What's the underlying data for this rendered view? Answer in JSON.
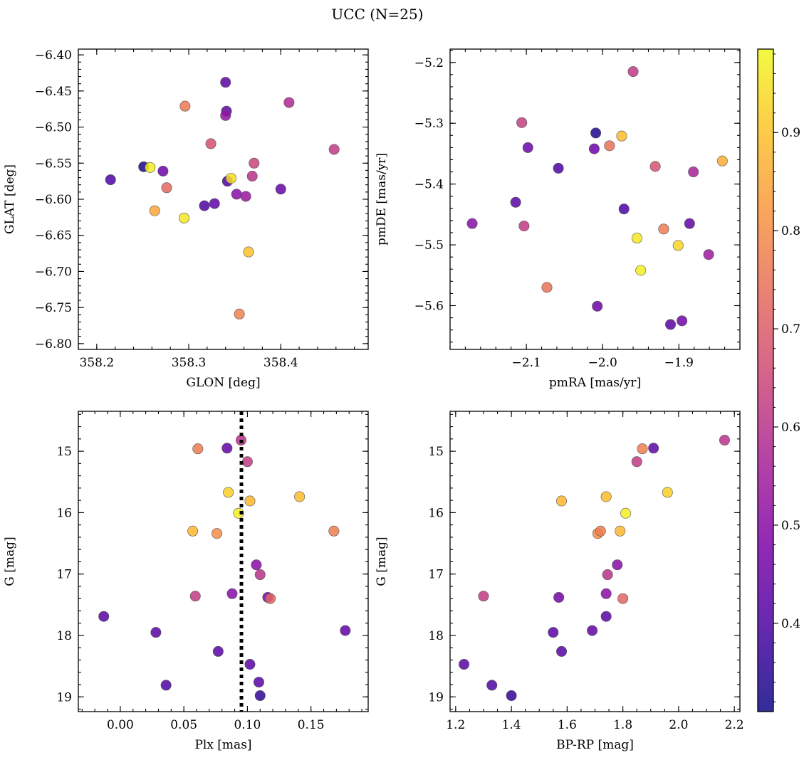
{
  "figure": {
    "title": "UCC (N=25)"
  },
  "colorbar": {
    "range": [
      0.31,
      0.985
    ],
    "ticks": [
      0.4,
      0.5,
      0.6,
      0.7,
      0.8,
      0.9
    ],
    "tick_labels": [
      "0.4",
      "0.5",
      "0.6",
      "0.7",
      "0.8",
      "0.9"
    ]
  },
  "chart_data": [
    {
      "id": "glon-glat",
      "type": "scatter",
      "xlabel": "GLON [deg]",
      "ylabel": "GLAT [deg]",
      "xlim": [
        358.18,
        358.495
      ],
      "ylim": [
        -6.808,
        -6.392
      ],
      "xticks": [
        358.2,
        358.3,
        358.4
      ],
      "xtick_labels": [
        "358.2",
        "358.3",
        "358.4"
      ],
      "yticks": [
        -6.8,
        -6.75,
        -6.7,
        -6.65,
        -6.6,
        -6.55,
        -6.5,
        -6.45,
        -6.4
      ],
      "ytick_labels": [
        "−6.80",
        "−6.75",
        "−6.70",
        "−6.65",
        "−6.60",
        "−6.55",
        "−6.50",
        "−6.45",
        "−6.40"
      ],
      "x_minor_step": 0.02,
      "y_minor_step": 0.01,
      "points": [
        {
          "x": 358.215,
          "y": -6.573,
          "c": 0.4
        },
        {
          "x": 358.251,
          "y": -6.555,
          "c": 0.33
        },
        {
          "x": 358.258,
          "y": -6.556,
          "c": 0.97
        },
        {
          "x": 358.263,
          "y": -6.616,
          "c": 0.85
        },
        {
          "x": 358.272,
          "y": -6.561,
          "c": 0.45
        },
        {
          "x": 358.276,
          "y": -6.584,
          "c": 0.73
        },
        {
          "x": 358.295,
          "y": -6.626,
          "c": 0.96
        },
        {
          "x": 358.296,
          "y": -6.471,
          "c": 0.76
        },
        {
          "x": 358.317,
          "y": -6.609,
          "c": 0.4
        },
        {
          "x": 358.324,
          "y": -6.523,
          "c": 0.67
        },
        {
          "x": 358.328,
          "y": -6.606,
          "c": 0.43
        },
        {
          "x": 358.34,
          "y": -6.438,
          "c": 0.42
        },
        {
          "x": 358.341,
          "y": -6.478,
          "c": 0.43
        },
        {
          "x": 358.34,
          "y": -6.484,
          "c": 0.52
        },
        {
          "x": 358.342,
          "y": -6.575,
          "c": 0.4
        },
        {
          "x": 358.346,
          "y": -6.571,
          "c": 0.94
        },
        {
          "x": 358.352,
          "y": -6.593,
          "c": 0.5
        },
        {
          "x": 358.355,
          "y": -6.759,
          "c": 0.78
        },
        {
          "x": 358.362,
          "y": -6.596,
          "c": 0.53
        },
        {
          "x": 358.365,
          "y": -6.673,
          "c": 0.9
        },
        {
          "x": 358.369,
          "y": -6.568,
          "c": 0.6
        },
        {
          "x": 358.371,
          "y": -6.55,
          "c": 0.64
        },
        {
          "x": 358.4,
          "y": -6.586,
          "c": 0.44
        },
        {
          "x": 358.409,
          "y": -6.466,
          "c": 0.58
        },
        {
          "x": 358.458,
          "y": -6.531,
          "c": 0.62
        }
      ]
    },
    {
      "id": "pmra-pmde",
      "type": "scatter",
      "xlabel": "pmRA [mas/yr]",
      "ylabel": "pmDE [mas/yr]",
      "xlim": [
        -2.2,
        -1.82
      ],
      "ylim": [
        -5.672,
        -5.178
      ],
      "xticks": [
        -2.1,
        -2.0,
        -1.9
      ],
      "xtick_labels": [
        "−2.1",
        "−2.0",
        "−1.9"
      ],
      "yticks": [
        -5.6,
        -5.5,
        -5.4,
        -5.3,
        -5.2
      ],
      "ytick_labels": [
        "−5.6",
        "−5.5",
        "−5.4",
        "−5.3",
        "−5.2"
      ],
      "x_minor_step": 0.02,
      "y_minor_step": 0.02,
      "points": [
        {
          "x": -2.171,
          "y": -5.465,
          "c": 0.5
        },
        {
          "x": -2.114,
          "y": -5.43,
          "c": 0.42
        },
        {
          "x": -2.106,
          "y": -5.299,
          "c": 0.63
        },
        {
          "x": -2.103,
          "y": -5.469,
          "c": 0.62
        },
        {
          "x": -2.098,
          "y": -5.34,
          "c": 0.45
        },
        {
          "x": -2.073,
          "y": -5.57,
          "c": 0.75
        },
        {
          "x": -2.058,
          "y": -5.374,
          "c": 0.4
        },
        {
          "x": -2.011,
          "y": -5.342,
          "c": 0.45
        },
        {
          "x": -2.009,
          "y": -5.316,
          "c": 0.33
        },
        {
          "x": -2.007,
          "y": -5.601,
          "c": 0.45
        },
        {
          "x": -1.991,
          "y": -5.337,
          "c": 0.75
        },
        {
          "x": -1.975,
          "y": -5.321,
          "c": 0.89
        },
        {
          "x": -1.972,
          "y": -5.441,
          "c": 0.4
        },
        {
          "x": -1.96,
          "y": -5.215,
          "c": 0.62
        },
        {
          "x": -1.955,
          "y": -5.489,
          "c": 0.96
        },
        {
          "x": -1.95,
          "y": -5.542,
          "c": 0.97
        },
        {
          "x": -1.931,
          "y": -5.371,
          "c": 0.68
        },
        {
          "x": -1.92,
          "y": -5.474,
          "c": 0.77
        },
        {
          "x": -1.911,
          "y": -5.631,
          "c": 0.42
        },
        {
          "x": -1.901,
          "y": -5.501,
          "c": 0.93
        },
        {
          "x": -1.896,
          "y": -5.625,
          "c": 0.46
        },
        {
          "x": -1.886,
          "y": -5.465,
          "c": 0.43
        },
        {
          "x": -1.881,
          "y": -5.38,
          "c": 0.56
        },
        {
          "x": -1.861,
          "y": -5.516,
          "c": 0.54
        },
        {
          "x": -1.843,
          "y": -5.362,
          "c": 0.86
        }
      ]
    },
    {
      "id": "plx-g",
      "type": "scatter",
      "xlabel": "Plx [mas]",
      "ylabel": "G [mag]",
      "xlim": [
        -0.033,
        0.195
      ],
      "ylim": [
        19.24,
        14.35
      ],
      "xticks": [
        0.0,
        0.05,
        0.1,
        0.15
      ],
      "xtick_labels": [
        "0.00",
        "0.05",
        "0.10",
        "0.15"
      ],
      "yticks": [
        15,
        16,
        17,
        18,
        19
      ],
      "ytick_labels": [
        "15",
        "16",
        "17",
        "18",
        "19"
      ],
      "x_minor_step": 0.01,
      "y_minor_step": 0.2,
      "vline": 0.0953,
      "points": [
        {
          "x": -0.013,
          "y": 17.69,
          "c": 0.42
        },
        {
          "x": 0.028,
          "y": 17.95,
          "c": 0.42
        },
        {
          "x": 0.036,
          "y": 18.81,
          "c": 0.4
        },
        {
          "x": 0.057,
          "y": 16.3,
          "c": 0.88
        },
        {
          "x": 0.059,
          "y": 17.36,
          "c": 0.62
        },
        {
          "x": 0.061,
          "y": 14.96,
          "c": 0.77
        },
        {
          "x": 0.076,
          "y": 16.34,
          "c": 0.8
        },
        {
          "x": 0.077,
          "y": 18.26,
          "c": 0.42
        },
        {
          "x": 0.084,
          "y": 14.95,
          "c": 0.43
        },
        {
          "x": 0.085,
          "y": 15.67,
          "c": 0.92
        },
        {
          "x": 0.088,
          "y": 17.32,
          "c": 0.5
        },
        {
          "x": 0.093,
          "y": 16.01,
          "c": 0.97
        },
        {
          "x": 0.095,
          "y": 14.82,
          "c": 0.6
        },
        {
          "x": 0.1,
          "y": 15.17,
          "c": 0.62
        },
        {
          "x": 0.102,
          "y": 15.81,
          "c": 0.88
        },
        {
          "x": 0.102,
          "y": 18.47,
          "c": 0.42
        },
        {
          "x": 0.107,
          "y": 16.85,
          "c": 0.5
        },
        {
          "x": 0.109,
          "y": 18.76,
          "c": 0.42
        },
        {
          "x": 0.11,
          "y": 17.01,
          "c": 0.6
        },
        {
          "x": 0.11,
          "y": 18.98,
          "c": 0.36
        },
        {
          "x": 0.116,
          "y": 17.38,
          "c": 0.46
        },
        {
          "x": 0.118,
          "y": 17.4,
          "c": 0.72
        },
        {
          "x": 0.141,
          "y": 15.74,
          "c": 0.89
        },
        {
          "x": 0.168,
          "y": 16.3,
          "c": 0.77
        },
        {
          "x": 0.177,
          "y": 17.92,
          "c": 0.43
        }
      ]
    },
    {
      "id": "bprp-g",
      "type": "scatter",
      "xlabel": "BP-RP [mag]",
      "ylabel": "G [mag]",
      "xlim": [
        1.18,
        2.22
      ],
      "ylim": [
        19.24,
        14.35
      ],
      "xticks": [
        1.2,
        1.4,
        1.6,
        1.8,
        2.0,
        2.2
      ],
      "xtick_labels": [
        "1.2",
        "1.4",
        "1.6",
        "1.8",
        "2.0",
        "2.2"
      ],
      "yticks": [
        15,
        16,
        17,
        18,
        19
      ],
      "ytick_labels": [
        "15",
        "16",
        "17",
        "18",
        "19"
      ],
      "x_minor_step": 0.05,
      "y_minor_step": 0.2,
      "points": [
        {
          "x": 1.23,
          "y": 18.47,
          "c": 0.42
        },
        {
          "x": 1.3,
          "y": 17.36,
          "c": 0.62
        },
        {
          "x": 1.33,
          "y": 18.81,
          "c": 0.4
        },
        {
          "x": 1.4,
          "y": 18.98,
          "c": 0.36
        },
        {
          "x": 1.55,
          "y": 17.95,
          "c": 0.42
        },
        {
          "x": 1.57,
          "y": 17.38,
          "c": 0.46
        },
        {
          "x": 1.58,
          "y": 15.81,
          "c": 0.88
        },
        {
          "x": 1.58,
          "y": 18.26,
          "c": 0.42
        },
        {
          "x": 1.69,
          "y": 17.92,
          "c": 0.43
        },
        {
          "x": 1.71,
          "y": 16.34,
          "c": 0.8
        },
        {
          "x": 1.72,
          "y": 16.3,
          "c": 0.77
        },
        {
          "x": 1.74,
          "y": 15.74,
          "c": 0.89
        },
        {
          "x": 1.74,
          "y": 17.32,
          "c": 0.5
        },
        {
          "x": 1.74,
          "y": 17.69,
          "c": 0.42
        },
        {
          "x": 1.745,
          "y": 17.01,
          "c": 0.6
        },
        {
          "x": 1.78,
          "y": 16.85,
          "c": 0.5
        },
        {
          "x": 1.79,
          "y": 16.3,
          "c": 0.88
        },
        {
          "x": 1.8,
          "y": 17.4,
          "c": 0.72
        },
        {
          "x": 1.81,
          "y": 16.01,
          "c": 0.97
        },
        {
          "x": 1.85,
          "y": 15.17,
          "c": 0.62
        },
        {
          "x": 1.87,
          "y": 14.96,
          "c": 0.77
        },
        {
          "x": 1.91,
          "y": 14.95,
          "c": 0.43
        },
        {
          "x": 1.96,
          "y": 15.67,
          "c": 0.92
        },
        {
          "x": 2.165,
          "y": 14.82,
          "c": 0.6
        }
      ]
    }
  ]
}
